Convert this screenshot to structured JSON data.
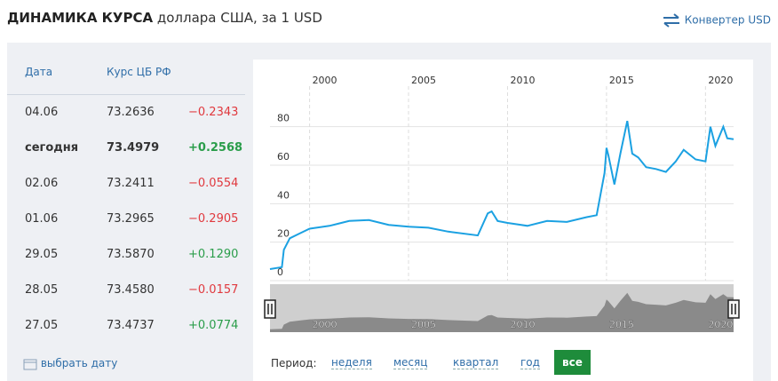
{
  "header": {
    "title": "ДИНАМИКА КУРСА",
    "subtitle": "доллара США, за 1 USD",
    "converter": "Конвертер USD"
  },
  "table": {
    "header": [
      "Дата",
      "Курс ЦБ РФ"
    ],
    "rows": [
      [
        "04.06",
        "73.2636",
        "−0.2343"
      ],
      [
        "сегодня",
        "73.4979",
        "+0.2568"
      ],
      [
        "02.06",
        "73.2411",
        "−0.0554"
      ],
      [
        "01.06",
        "73.2965",
        "−0.2905"
      ],
      [
        "29.05",
        "73.5870",
        "+0.1290"
      ],
      [
        "28.05",
        "73.4580",
        "−0.0157"
      ],
      [
        "27.05",
        "73.4737",
        "+0.0774"
      ]
    ],
    "pick_date": "выбрать дату"
  },
  "period": {
    "label": "Период:",
    "options": [
      "неделя",
      "месяц",
      "квартал",
      "год",
      "все"
    ],
    "active": 4
  },
  "chart_data": {
    "type": "line",
    "color": "#1ba1e2",
    "x": [
      1998.0,
      1998.6,
      1998.7,
      1999.0,
      1999.5,
      2000.0,
      2001.0,
      2002.0,
      2003.0,
      2004.0,
      2005.0,
      2006.0,
      2007.0,
      2008.5,
      2009.0,
      2009.2,
      2009.5,
      2010.0,
      2011.0,
      2012.0,
      2013.0,
      2014.0,
      2014.5,
      2014.9,
      2015.0,
      2015.1,
      2015.4,
      2015.7,
      2016.05,
      2016.3,
      2016.6,
      2017.0,
      2017.5,
      2018.0,
      2018.5,
      2018.9,
      2019.5,
      2020.0,
      2020.25,
      2020.5,
      2020.9,
      2021.1,
      2021.42
    ],
    "values": [
      6,
      7,
      16,
      22,
      24.5,
      27,
      28.5,
      31,
      31.5,
      29,
      28,
      27.5,
      25.5,
      23.5,
      35,
      36,
      31,
      30,
      28.5,
      31,
      30.5,
      33,
      34,
      56,
      69,
      65,
      50,
      66,
      83,
      66,
      64,
      59,
      58,
      56.5,
      62,
      68,
      63,
      62,
      80,
      70,
      80,
      74,
      73.5
    ],
    "xlim": [
      1998,
      2021.42
    ],
    "ylim": [
      0,
      90
    ],
    "xticks": [
      2000,
      2005,
      2010,
      2015,
      2020
    ],
    "yticks": [
      0,
      20,
      40,
      60,
      80
    ],
    "grid": true
  }
}
